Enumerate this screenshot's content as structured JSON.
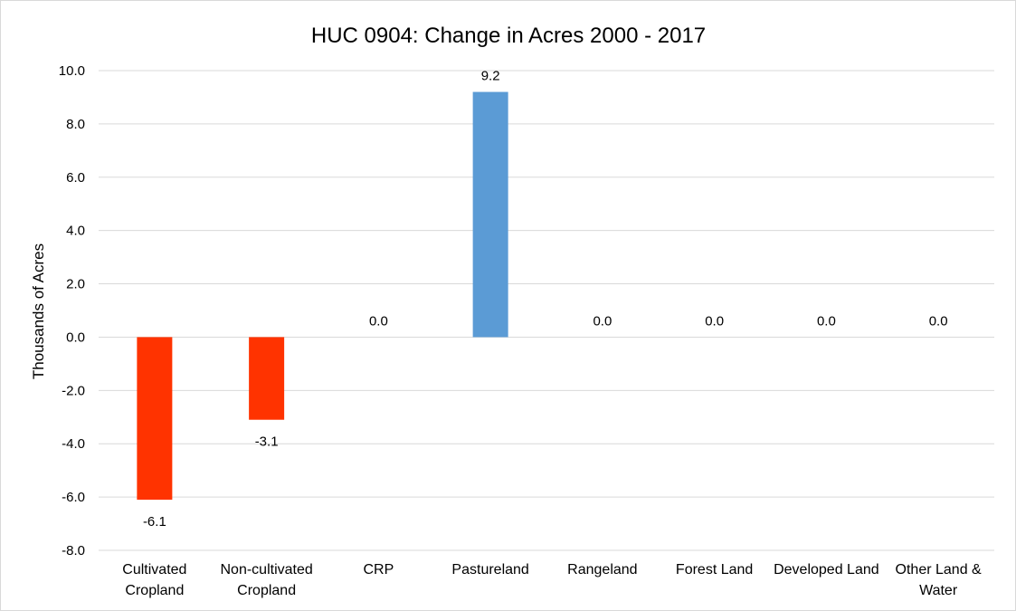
{
  "chart_data": {
    "type": "bar",
    "title": "HUC 0904: Change in Acres 2000 - 2017",
    "xlabel": "",
    "ylabel": "Thousands of Acres",
    "ylim": [
      -8.0,
      10.0
    ],
    "ytick_step": 2.0,
    "grid": true,
    "legend": "none",
    "categories": [
      [
        "Cultivated",
        "Cropland"
      ],
      [
        "Non-cultivated",
        "Cropland"
      ],
      [
        "CRP"
      ],
      [
        "Pastureland"
      ],
      [
        "Rangeland"
      ],
      [
        "Forest Land"
      ],
      [
        "Developed Land"
      ],
      [
        "Other Land &",
        "Water"
      ]
    ],
    "values": [
      -6.1,
      -3.1,
      0.0,
      9.2,
      0.0,
      0.0,
      0.0,
      0.0
    ],
    "colors": {
      "positive": "#5b9bd5",
      "negative": "#ff3300",
      "grid": "#d9d9d9"
    }
  }
}
